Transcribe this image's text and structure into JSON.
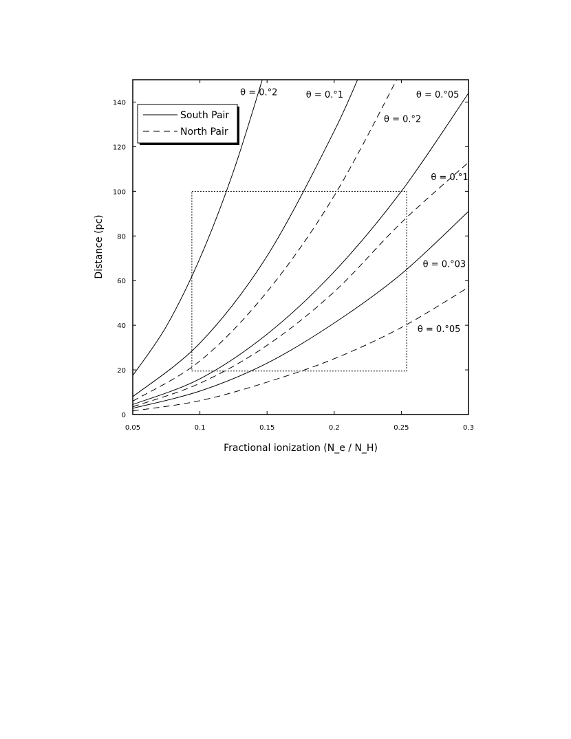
{
  "chart_data": {
    "type": "line",
    "title": "",
    "xlabel": "Fractional ionization (N_e / N_H)",
    "ylabel": "Distance (pc)",
    "xlim": [
      0.05,
      0.3
    ],
    "ylim": [
      0,
      150
    ],
    "x_ticks": [
      "0.05",
      "0.1",
      "0.15",
      "0.2",
      "0.25",
      "0.3"
    ],
    "y_ticks": [
      "0",
      "20",
      "40",
      "60",
      "80",
      "100",
      "120",
      "140"
    ],
    "grid": false,
    "legend_position": "top-left",
    "legend": [
      {
        "label": "South Pair",
        "style": "solid"
      },
      {
        "label": "North Pair",
        "style": "dashed"
      }
    ],
    "series": [
      {
        "group": "South Pair",
        "style": "solid",
        "label": "θ = 0.°2",
        "x": [
          0.05,
          0.075,
          0.1,
          0.125,
          0.15
        ],
        "y": [
          17.5,
          39.5,
          70,
          109,
          157
        ]
      },
      {
        "group": "South Pair",
        "style": "solid",
        "label": "θ = 0.°1",
        "x": [
          0.05,
          0.1,
          0.15,
          0.2,
          0.225
        ],
        "y": [
          8,
          32,
          71,
          127,
          161
        ]
      },
      {
        "group": "South Pair",
        "style": "solid",
        "label": "θ = 0.°05",
        "x": [
          0.05,
          0.1,
          0.15,
          0.2,
          0.25,
          0.3
        ],
        "y": [
          4.5,
          16,
          36,
          64,
          100,
          144
        ]
      },
      {
        "group": "South Pair",
        "style": "solid",
        "label": "θ = 0.°03",
        "x": [
          0.05,
          0.1,
          0.15,
          0.2,
          0.25,
          0.3
        ],
        "y": [
          2.8,
          10.5,
          23,
          41,
          63,
          91
        ]
      },
      {
        "group": "North Pair",
        "style": "dashed",
        "label": "θ = 0.°2",
        "x": [
          0.05,
          0.1,
          0.15,
          0.2,
          0.25
        ],
        "y": [
          6,
          24,
          55,
          98,
          154
        ]
      },
      {
        "group": "North Pair",
        "style": "dashed",
        "label": "θ = 0.°1",
        "x": [
          0.05,
          0.1,
          0.15,
          0.2,
          0.25,
          0.3
        ],
        "y": [
          3.5,
          14,
          31,
          55,
          86,
          113
        ]
      },
      {
        "group": "North Pair",
        "style": "dashed",
        "label": "θ = 0.°05",
        "x": [
          0.05,
          0.1,
          0.15,
          0.2,
          0.25,
          0.3
        ],
        "y": [
          1.6,
          6.2,
          14.5,
          25,
          39,
          57
        ]
      }
    ],
    "annotations": [
      {
        "text": "θ = 0.°2",
        "x": 0.13,
        "y": 143
      },
      {
        "text": "θ = 0.°1",
        "x": 0.179,
        "y": 142
      },
      {
        "text": "θ = 0.°05",
        "x": 0.261,
        "y": 142
      },
      {
        "text": "θ = 0.°2",
        "x": 0.237,
        "y": 131
      },
      {
        "text": "θ = 0.°1",
        "x": 0.272,
        "y": 105
      },
      {
        "text": "θ = 0.°03",
        "x": 0.266,
        "y": 66
      },
      {
        "text": "θ = 0.°05",
        "x": 0.262,
        "y": 37
      }
    ],
    "box": {
      "x": [
        0.094,
        0.254
      ],
      "y": [
        19.5,
        100
      ],
      "style": "dotted"
    }
  }
}
